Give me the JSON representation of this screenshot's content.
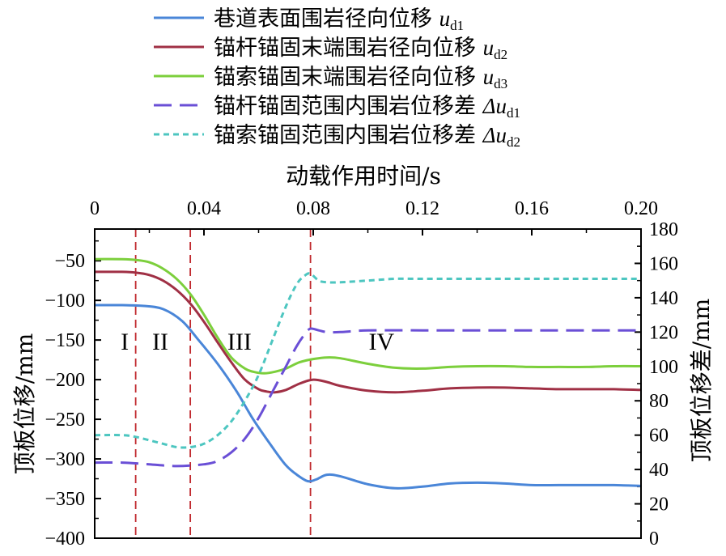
{
  "chart_data": {
    "type": "line",
    "xlabel": "动载作用时间/s",
    "ylabel_left": "顶板位移/mm",
    "ylabel_right": "顶板位移差/mm",
    "xlim": [
      0,
      0.2
    ],
    "ylim_left": [
      -400,
      -10
    ],
    "ylim_right": [
      0,
      180
    ],
    "x_ticks": [
      "0",
      "0.04",
      "0.08",
      "0.12",
      "0.16",
      "0.20"
    ],
    "y_left_ticks": [
      "-50",
      "-100",
      "-150",
      "-200",
      "-250",
      "-300",
      "-350",
      "-400"
    ],
    "y_right_ticks": [
      "180",
      "160",
      "140",
      "120",
      "100",
      "80",
      "60",
      "40",
      "20",
      "0"
    ],
    "legend_position": "top",
    "stages": {
      "labels": [
        "I",
        "II",
        "III",
        "IV"
      ],
      "boundaries": [
        0.015,
        0.035,
        0.079
      ],
      "label_x": [
        0.011,
        0.024,
        0.053,
        0.105
      ]
    },
    "series": [
      {
        "name": "巷道表面围岩径向位移",
        "sym": "u",
        "sub": "d1",
        "axis": "left",
        "color": "#4a86d8",
        "dash": "",
        "x": [
          0,
          0.01,
          0.018,
          0.025,
          0.032,
          0.038,
          0.045,
          0.052,
          0.058,
          0.065,
          0.07,
          0.074,
          0.078,
          0.081,
          0.085,
          0.09,
          0.1,
          0.11,
          0.12,
          0.13,
          0.14,
          0.15,
          0.16,
          0.17,
          0.18,
          0.19,
          0.2
        ],
        "y": [
          -106,
          -106,
          -107,
          -111,
          -126,
          -150,
          -180,
          -215,
          -250,
          -285,
          -308,
          -320,
          -328,
          -326,
          -320,
          -322,
          -332,
          -337,
          -335,
          -331,
          -330,
          -331,
          -333,
          -333,
          -333,
          -333,
          -334
        ]
      },
      {
        "name": "锚杆锚固末端围岩径向位移",
        "sym": "u",
        "sub": "d2",
        "axis": "left",
        "color": "#a03045",
        "dash": "",
        "x": [
          0,
          0.01,
          0.015,
          0.02,
          0.025,
          0.03,
          0.035,
          0.04,
          0.045,
          0.05,
          0.055,
          0.06,
          0.063,
          0.066,
          0.07,
          0.075,
          0.08,
          0.085,
          0.09,
          0.1,
          0.11,
          0.12,
          0.13,
          0.14,
          0.15,
          0.16,
          0.17,
          0.18,
          0.19,
          0.2
        ],
        "y": [
          -64,
          -64,
          -65,
          -68,
          -75,
          -87,
          -104,
          -127,
          -153,
          -178,
          -200,
          -212,
          -215,
          -216,
          -213,
          -205,
          -200,
          -203,
          -208,
          -214,
          -216,
          -214,
          -211,
          -210,
          -210,
          -211,
          -212,
          -212,
          -212,
          -213
        ]
      },
      {
        "name": "锚索锚固末端围岩径向位移",
        "sym": "u",
        "sub": "d3",
        "axis": "left",
        "color": "#7ccf3c",
        "dash": "",
        "x": [
          0,
          0.01,
          0.015,
          0.02,
          0.025,
          0.03,
          0.035,
          0.04,
          0.045,
          0.05,
          0.055,
          0.058,
          0.062,
          0.066,
          0.07,
          0.075,
          0.08,
          0.085,
          0.09,
          0.1,
          0.11,
          0.12,
          0.13,
          0.14,
          0.15,
          0.16,
          0.17,
          0.18,
          0.19,
          0.2
        ],
        "y": [
          -48,
          -48,
          -49,
          -52,
          -60,
          -73,
          -92,
          -118,
          -147,
          -172,
          -186,
          -190,
          -192,
          -190,
          -186,
          -178,
          -174,
          -172,
          -173,
          -180,
          -185,
          -186,
          -184,
          -183,
          -183,
          -184,
          -184,
          -184,
          -183,
          -183
        ]
      },
      {
        "name": "锚杆锚固范围内围岩位移差",
        "sym": "Δu",
        "sub": "d1",
        "axis": "right",
        "color": "#6a4fd6",
        "dash": "22,10",
        "x": [
          0,
          0.01,
          0.02,
          0.03,
          0.04,
          0.045,
          0.05,
          0.055,
          0.06,
          0.065,
          0.07,
          0.074,
          0.077,
          0.079,
          0.082,
          0.085,
          0.09,
          0.1,
          0.12,
          0.14,
          0.16,
          0.18,
          0.2
        ],
        "y": [
          44,
          44,
          43,
          42,
          43,
          45,
          50,
          58,
          70,
          85,
          100,
          112,
          119,
          122,
          121,
          120,
          120,
          121,
          121,
          121,
          121,
          121,
          121
        ]
      },
      {
        "name": "锚索锚固范围内围岩位移差",
        "sym": "Δu",
        "sub": "d2",
        "axis": "right",
        "color": "#4dc6c0",
        "dash": "7,5",
        "x": [
          0,
          0.01,
          0.015,
          0.02,
          0.025,
          0.03,
          0.035,
          0.04,
          0.045,
          0.05,
          0.055,
          0.06,
          0.065,
          0.07,
          0.074,
          0.077,
          0.079,
          0.082,
          0.085,
          0.09,
          0.1,
          0.11,
          0.12,
          0.14,
          0.16,
          0.18,
          0.2
        ],
        "y": [
          60,
          60,
          59,
          57,
          55,
          53,
          53,
          55,
          60,
          68,
          80,
          95,
          115,
          135,
          148,
          153,
          154,
          150,
          149,
          149,
          150,
          151,
          151,
          151,
          151,
          151,
          151
        ]
      }
    ]
  }
}
